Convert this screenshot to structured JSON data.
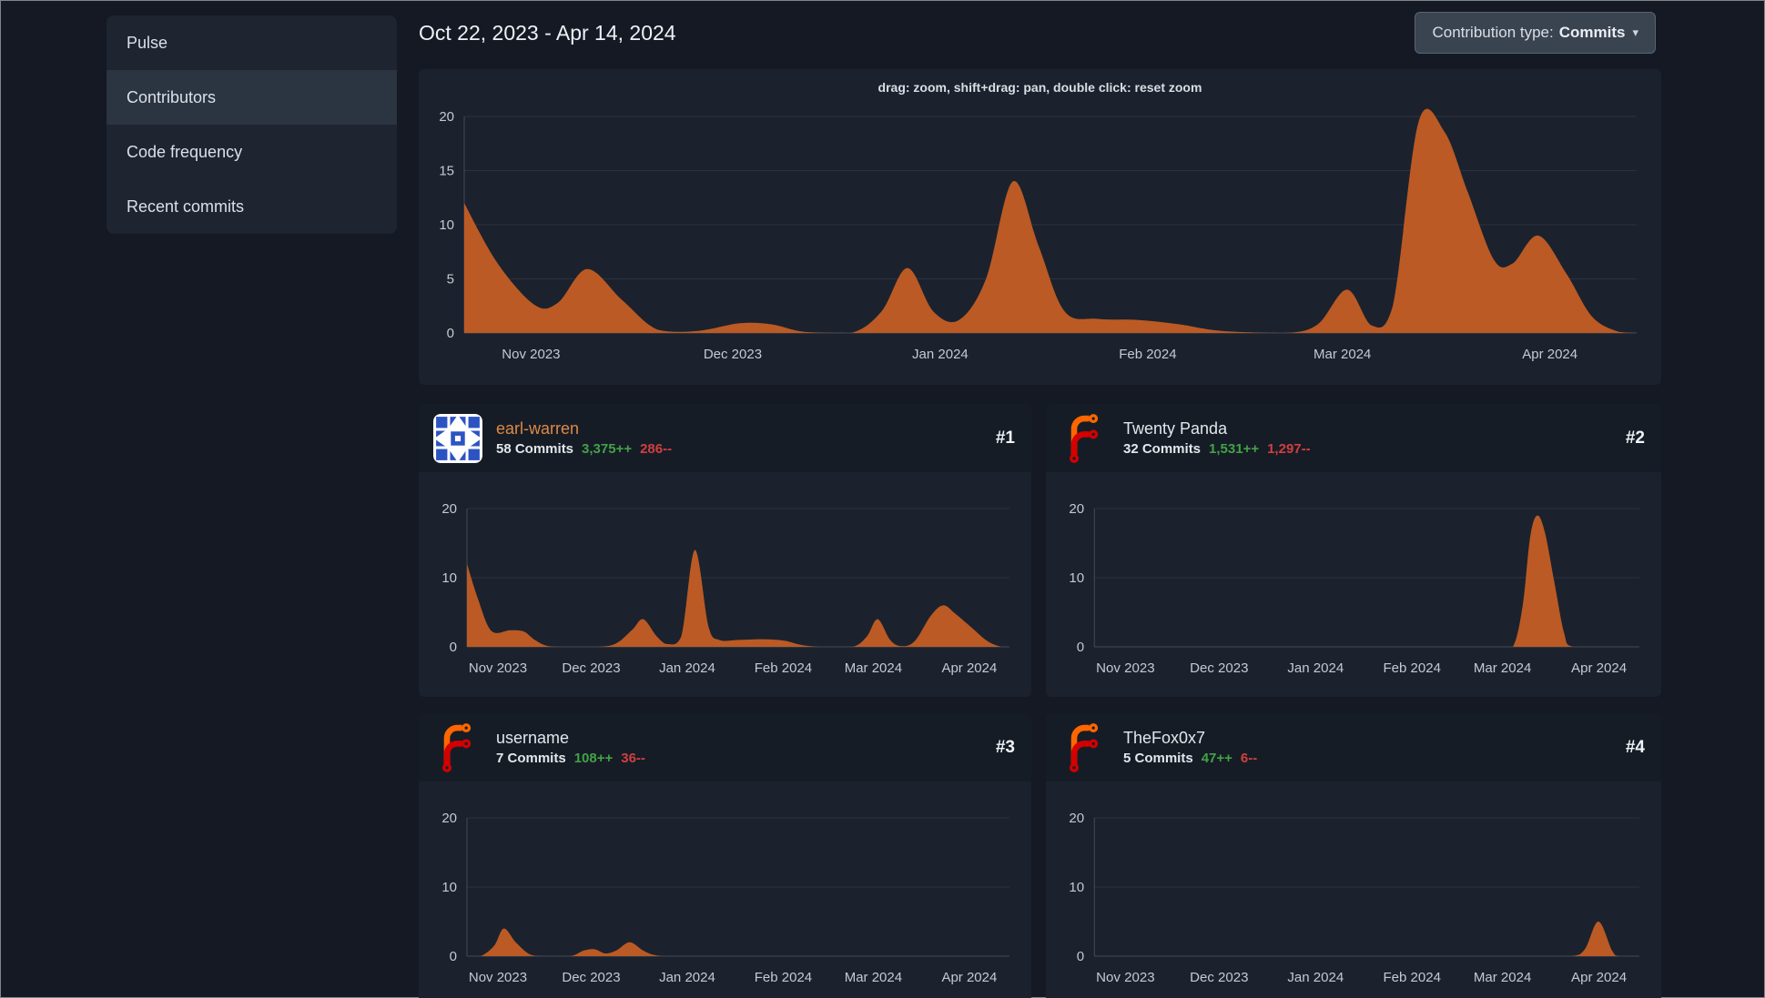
{
  "sidebar": {
    "items": [
      {
        "label": "Pulse",
        "active": false
      },
      {
        "label": "Contributors",
        "active": true
      },
      {
        "label": "Code frequency",
        "active": false
      },
      {
        "label": "Recent commits",
        "active": false
      }
    ]
  },
  "header": {
    "date_range": "Oct 22, 2023 - Apr 14, 2024",
    "contribution_type": {
      "label": "Contribution type:",
      "value": "Commits"
    }
  },
  "main_chart_hint": "drag: zoom, shift+drag: pan, double click: reset zoom",
  "contributors": [
    {
      "rank": "#1",
      "name": "earl-warren",
      "commits": "58 Commits",
      "additions": "3,375++",
      "deletions": "286--",
      "avatar": "identicon"
    },
    {
      "rank": "#2",
      "name": "Twenty Panda",
      "commits": "32 Commits",
      "additions": "1,531++",
      "deletions": "1,297--",
      "avatar": "forgejo-logo"
    },
    {
      "rank": "#3",
      "name": "username",
      "commits": "7 Commits",
      "additions": "108++",
      "deletions": "36--",
      "avatar": "forgejo-logo"
    },
    {
      "rank": "#4",
      "name": "TheFox0x7",
      "commits": "5 Commits",
      "additions": "47++",
      "deletions": "6--",
      "avatar": "forgejo-logo"
    }
  ],
  "chart_data": {
    "type": "area",
    "x_range": [
      "Oct 22, 2023",
      "Apr 14, 2024"
    ],
    "grid": "horizontal-only",
    "month_ticks": [
      {
        "label": "Nov 2023",
        "f": 0.057
      },
      {
        "label": "Dec 2023",
        "f": 0.229
      },
      {
        "label": "Jan 2024",
        "f": 0.406
      },
      {
        "label": "Feb 2024",
        "f": 0.583
      },
      {
        "label": "Mar 2024",
        "f": 0.749
      },
      {
        "label": "Apr 2024",
        "f": 0.926
      }
    ],
    "main": {
      "title": "repository commit activity (all contributors)",
      "ymax": 20,
      "yticks": [
        0,
        5,
        10,
        15,
        20
      ],
      "points": [
        [
          0,
          12
        ],
        [
          0.028,
          6.5
        ],
        [
          0.06,
          2.6
        ],
        [
          0.08,
          2.8
        ],
        [
          0.105,
          5.9
        ],
        [
          0.135,
          3
        ],
        [
          0.165,
          0.3
        ],
        [
          0.2,
          0.2
        ],
        [
          0.235,
          0.9
        ],
        [
          0.262,
          0.8
        ],
        [
          0.29,
          0.1
        ],
        [
          0.33,
          0
        ],
        [
          0.356,
          2
        ],
        [
          0.378,
          6
        ],
        [
          0.4,
          2
        ],
        [
          0.422,
          1.2
        ],
        [
          0.445,
          5
        ],
        [
          0.468,
          14
        ],
        [
          0.49,
          8
        ],
        [
          0.512,
          2
        ],
        [
          0.54,
          1.3
        ],
        [
          0.575,
          1.2
        ],
        [
          0.61,
          0.8
        ],
        [
          0.645,
          0.2
        ],
        [
          0.7,
          0
        ],
        [
          0.728,
          0.8
        ],
        [
          0.753,
          4
        ],
        [
          0.774,
          0.7
        ],
        [
          0.792,
          2.5
        ],
        [
          0.814,
          19.5
        ],
        [
          0.836,
          18.6
        ],
        [
          0.856,
          13
        ],
        [
          0.878,
          6.8
        ],
        [
          0.894,
          6.4
        ],
        [
          0.916,
          9
        ],
        [
          0.94,
          5.5
        ],
        [
          0.962,
          1.5
        ],
        [
          0.985,
          0.1
        ],
        [
          1,
          0
        ]
      ]
    },
    "per_contributor": [
      {
        "name": "earl-warren",
        "ymax": 20,
        "yticks": [
          0,
          10,
          20
        ],
        "points": [
          [
            0,
            12
          ],
          [
            0.02,
            7
          ],
          [
            0.045,
            2.3
          ],
          [
            0.08,
            2.4
          ],
          [
            0.105,
            2.2
          ],
          [
            0.125,
            1
          ],
          [
            0.15,
            0.1
          ],
          [
            0.19,
            0
          ],
          [
            0.24,
            0
          ],
          [
            0.275,
            0.5
          ],
          [
            0.305,
            2.5
          ],
          [
            0.325,
            4
          ],
          [
            0.35,
            1.5
          ],
          [
            0.37,
            0.4
          ],
          [
            0.395,
            1.5
          ],
          [
            0.42,
            14
          ],
          [
            0.445,
            3
          ],
          [
            0.465,
            1
          ],
          [
            0.5,
            1
          ],
          [
            0.545,
            1.1
          ],
          [
            0.585,
            0.9
          ],
          [
            0.615,
            0.3
          ],
          [
            0.65,
            0
          ],
          [
            0.71,
            0
          ],
          [
            0.737,
            1.5
          ],
          [
            0.757,
            4
          ],
          [
            0.78,
            1
          ],
          [
            0.8,
            0.1
          ],
          [
            0.825,
            0.8
          ],
          [
            0.855,
            4.5
          ],
          [
            0.878,
            6
          ],
          [
            0.9,
            4.8
          ],
          [
            0.93,
            2.8
          ],
          [
            0.96,
            0.8
          ],
          [
            0.985,
            0
          ],
          [
            1,
            0
          ]
        ]
      },
      {
        "name": "Twenty Panda",
        "ymax": 20,
        "yticks": [
          0,
          10,
          20
        ],
        "points": [
          [
            0,
            0
          ],
          [
            0.3,
            0
          ],
          [
            0.6,
            0
          ],
          [
            0.74,
            0
          ],
          [
            0.768,
            0
          ],
          [
            0.786,
            6
          ],
          [
            0.8,
            16
          ],
          [
            0.813,
            19
          ],
          [
            0.827,
            16.5
          ],
          [
            0.845,
            9
          ],
          [
            0.862,
            2
          ],
          [
            0.878,
            0
          ],
          [
            0.95,
            0
          ],
          [
            1,
            0
          ]
        ]
      },
      {
        "name": "username",
        "ymax": 20,
        "yticks": [
          0,
          10,
          20
        ],
        "points": [
          [
            0,
            0
          ],
          [
            0.025,
            0
          ],
          [
            0.05,
            1.5
          ],
          [
            0.068,
            4
          ],
          [
            0.09,
            2
          ],
          [
            0.115,
            0.3
          ],
          [
            0.14,
            0
          ],
          [
            0.19,
            0
          ],
          [
            0.215,
            0.8
          ],
          [
            0.235,
            1
          ],
          [
            0.255,
            0.4
          ],
          [
            0.275,
            0.8
          ],
          [
            0.3,
            2
          ],
          [
            0.325,
            0.8
          ],
          [
            0.35,
            0.1
          ],
          [
            0.4,
            0
          ],
          [
            0.7,
            0
          ],
          [
            1,
            0
          ]
        ]
      },
      {
        "name": "TheFox0x7",
        "ymax": 20,
        "yticks": [
          0,
          10,
          20
        ],
        "points": [
          [
            0,
            0
          ],
          [
            0.4,
            0
          ],
          [
            0.8,
            0
          ],
          [
            0.875,
            0
          ],
          [
            0.9,
            1
          ],
          [
            0.925,
            5
          ],
          [
            0.95,
            0.8
          ],
          [
            0.963,
            0
          ],
          [
            1,
            0
          ]
        ]
      }
    ]
  },
  "colors": {
    "area": "#bb5a24",
    "link": "#dd8a45",
    "additions": "#42a246",
    "deletions": "#d23f3f",
    "tick_text": "#c3cad2",
    "gridline": "#2b323d",
    "axis_line": "#434b57"
  }
}
